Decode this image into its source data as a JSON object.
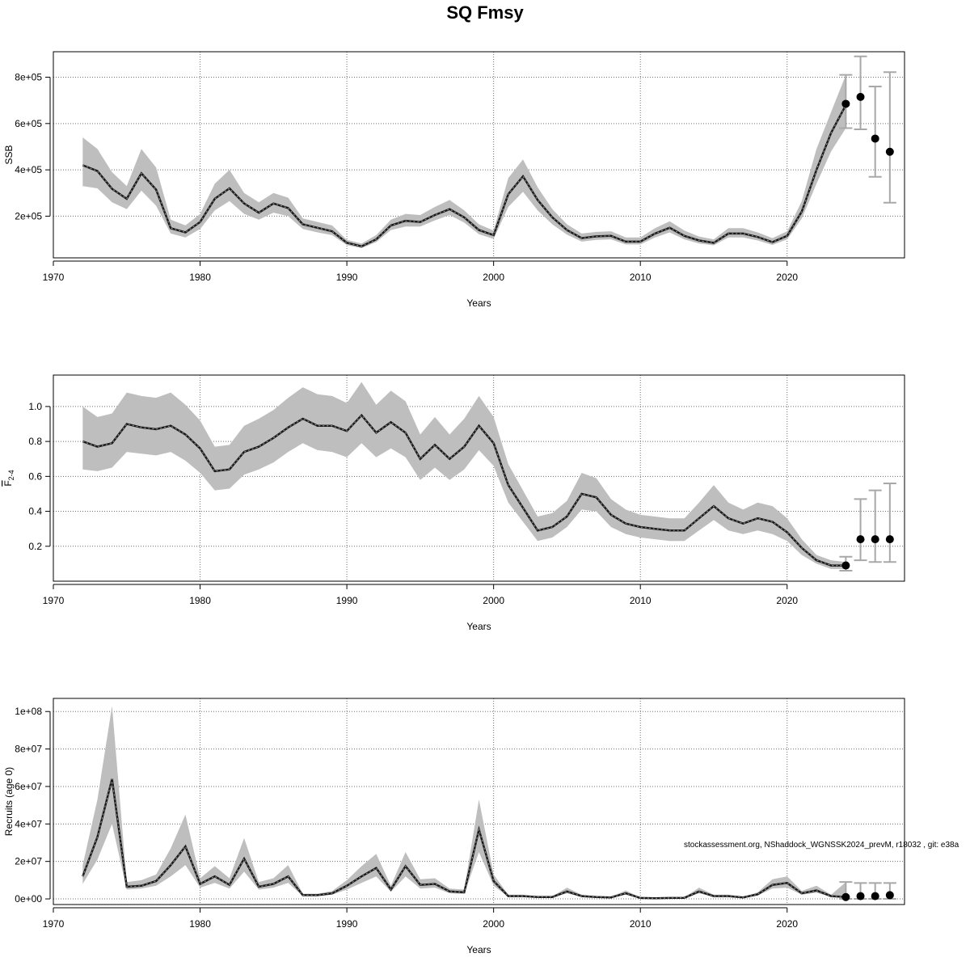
{
  "title": "SQ Fmsy",
  "watermark": "stockassessment.org, NShaddock_WGNSSK2024_prevM, r18032 , git: e38a",
  "colors": {
    "band": "#bebebe",
    "line": "#1a1a1a",
    "point": "#000000",
    "errorbar": "#a8a8a8",
    "grid": "#6e6e6e",
    "axis": "#000000"
  },
  "chart_data": [
    {
      "type": "line",
      "xlabel": "Years",
      "ylabel": "SSB",
      "xlim": [
        1970,
        2028
      ],
      "ylim": [
        20000,
        910000
      ],
      "xticks": [
        1970,
        1980,
        1990,
        2000,
        2010,
        2020
      ],
      "yticks": [
        200000,
        400000,
        600000,
        800000
      ],
      "ytick_labels": [
        "2e+05",
        "4e+05",
        "6e+05",
        "8e+05"
      ],
      "grid": true,
      "x": [
        1972,
        1973,
        1974,
        1975,
        1976,
        1977,
        1978,
        1979,
        1980,
        1981,
        1982,
        1983,
        1984,
        1985,
        1986,
        1987,
        1988,
        1989,
        1990,
        1991,
        1992,
        1993,
        1994,
        1995,
        1996,
        1997,
        1998,
        1999,
        2000,
        2001,
        2002,
        2003,
        2004,
        2005,
        2006,
        2007,
        2008,
        2009,
        2010,
        2011,
        2012,
        2013,
        2014,
        2015,
        2016,
        2017,
        2018,
        2019,
        2020,
        2021,
        2022,
        2023,
        2024
      ],
      "estimate": [
        420000,
        395000,
        318000,
        275000,
        385000,
        315000,
        148000,
        130000,
        175000,
        275000,
        320000,
        255000,
        215000,
        255000,
        235000,
        165000,
        150000,
        135000,
        85000,
        70000,
        100000,
        160000,
        180000,
        175000,
        205000,
        230000,
        195000,
        140000,
        118000,
        295000,
        372000,
        270000,
        195000,
        140000,
        105000,
        113000,
        115000,
        90000,
        90000,
        125000,
        150000,
        115000,
        95000,
        85000,
        125000,
        125000,
        110000,
        88000,
        115000,
        220000,
        400000,
        560000,
        680000
      ],
      "lower": [
        330000,
        320000,
        260000,
        230000,
        310000,
        245000,
        125000,
        108000,
        145000,
        225000,
        265000,
        210000,
        185000,
        215000,
        200000,
        145000,
        130000,
        118000,
        75000,
        62000,
        88000,
        140000,
        155000,
        155000,
        182000,
        205000,
        172000,
        122000,
        102000,
        240000,
        305000,
        225000,
        165000,
        120000,
        90000,
        98000,
        100000,
        78000,
        78000,
        108000,
        130000,
        100000,
        82000,
        74000,
        108000,
        108000,
        95000,
        76000,
        100000,
        190000,
        340000,
        480000,
        580000
      ],
      "upper": [
        540000,
        490000,
        390000,
        330000,
        490000,
        410000,
        185000,
        160000,
        210000,
        340000,
        400000,
        300000,
        260000,
        300000,
        280000,
        190000,
        175000,
        160000,
        98000,
        82000,
        118000,
        185000,
        210000,
        205000,
        240000,
        270000,
        225000,
        165000,
        138000,
        365000,
        445000,
        325000,
        230000,
        165000,
        125000,
        132000,
        135000,
        108000,
        108000,
        148000,
        178000,
        138000,
        112000,
        100000,
        148000,
        148000,
        130000,
        105000,
        135000,
        265000,
        490000,
        650000,
        810000
      ],
      "forecast_points": [
        {
          "year": 2024,
          "value": 685000,
          "low": 580000,
          "high": 810000
        },
        {
          "year": 2025,
          "value": 715000,
          "low": 575000,
          "high": 890000
        },
        {
          "year": 2026,
          "value": 535000,
          "low": 370000,
          "high": 760000
        },
        {
          "year": 2027,
          "value": 478000,
          "low": 258000,
          "high": 822000
        }
      ]
    },
    {
      "type": "line",
      "xlabel": "Years",
      "ylabel_main": "F",
      "ylabel_sub": "2-4",
      "xlim": [
        1970,
        2028
      ],
      "ylim": [
        0.0,
        1.18
      ],
      "xticks": [
        1970,
        1980,
        1990,
        2000,
        2010,
        2020
      ],
      "yticks": [
        0.2,
        0.4,
        0.6,
        0.8,
        1.0
      ],
      "ytick_labels": [
        "0.2",
        "0.4",
        "0.6",
        "0.8",
        "1.0"
      ],
      "grid": true,
      "x": [
        1972,
        1973,
        1974,
        1975,
        1976,
        1977,
        1978,
        1979,
        1980,
        1981,
        1982,
        1983,
        1984,
        1985,
        1986,
        1987,
        1988,
        1989,
        1990,
        1991,
        1992,
        1993,
        1994,
        1995,
        1996,
        1997,
        1998,
        1999,
        2000,
        2001,
        2002,
        2003,
        2004,
        2005,
        2006,
        2007,
        2008,
        2009,
        2010,
        2011,
        2012,
        2013,
        2014,
        2015,
        2016,
        2017,
        2018,
        2019,
        2020,
        2021,
        2022,
        2023,
        2024
      ],
      "estimate": [
        0.8,
        0.77,
        0.79,
        0.9,
        0.88,
        0.87,
        0.89,
        0.84,
        0.76,
        0.63,
        0.64,
        0.74,
        0.77,
        0.82,
        0.88,
        0.93,
        0.89,
        0.89,
        0.86,
        0.95,
        0.85,
        0.91,
        0.85,
        0.7,
        0.78,
        0.7,
        0.77,
        0.89,
        0.79,
        0.55,
        0.42,
        0.29,
        0.31,
        0.37,
        0.5,
        0.48,
        0.38,
        0.33,
        0.31,
        0.3,
        0.29,
        0.29,
        0.36,
        0.43,
        0.36,
        0.33,
        0.36,
        0.34,
        0.28,
        0.19,
        0.12,
        0.09,
        0.09
      ],
      "lower": [
        0.64,
        0.63,
        0.65,
        0.74,
        0.73,
        0.72,
        0.74,
        0.69,
        0.62,
        0.52,
        0.53,
        0.61,
        0.64,
        0.68,
        0.74,
        0.79,
        0.75,
        0.74,
        0.71,
        0.79,
        0.71,
        0.76,
        0.71,
        0.58,
        0.65,
        0.58,
        0.64,
        0.75,
        0.66,
        0.45,
        0.34,
        0.23,
        0.25,
        0.31,
        0.41,
        0.4,
        0.31,
        0.27,
        0.25,
        0.24,
        0.23,
        0.23,
        0.29,
        0.35,
        0.29,
        0.27,
        0.29,
        0.27,
        0.23,
        0.15,
        0.1,
        0.07,
        0.07
      ],
      "upper": [
        1.0,
        0.94,
        0.96,
        1.08,
        1.06,
        1.05,
        1.08,
        1.01,
        0.92,
        0.77,
        0.78,
        0.89,
        0.93,
        0.98,
        1.05,
        1.11,
        1.07,
        1.06,
        1.02,
        1.14,
        1.01,
        1.09,
        1.03,
        0.84,
        0.94,
        0.84,
        0.93,
        1.06,
        0.94,
        0.67,
        0.52,
        0.37,
        0.39,
        0.46,
        0.62,
        0.59,
        0.47,
        0.41,
        0.38,
        0.37,
        0.36,
        0.36,
        0.45,
        0.55,
        0.45,
        0.41,
        0.45,
        0.43,
        0.36,
        0.24,
        0.15,
        0.12,
        0.11
      ],
      "forecast_points": [
        {
          "year": 2024,
          "value": 0.09,
          "low": 0.06,
          "high": 0.14
        },
        {
          "year": 2025,
          "value": 0.24,
          "low": 0.12,
          "high": 0.47
        },
        {
          "year": 2026,
          "value": 0.24,
          "low": 0.11,
          "high": 0.52
        },
        {
          "year": 2027,
          "value": 0.24,
          "low": 0.11,
          "high": 0.56
        }
      ]
    },
    {
      "type": "line",
      "xlabel": "Years",
      "ylabel": "Recruits (age 0)",
      "xlim": [
        1970,
        2028
      ],
      "ylim": [
        -3000000,
        107000000
      ],
      "xticks": [
        1970,
        1980,
        1990,
        2000,
        2010,
        2020
      ],
      "yticks": [
        0,
        20000000,
        40000000,
        60000000,
        80000000,
        100000000
      ],
      "ytick_labels": [
        "0e+00",
        "2e+07",
        "4e+07",
        "6e+07",
        "8e+07",
        "1e+08"
      ],
      "grid": true,
      "x": [
        1972,
        1973,
        1974,
        1975,
        1976,
        1977,
        1978,
        1979,
        1980,
        1981,
        1982,
        1983,
        1984,
        1985,
        1986,
        1987,
        1988,
        1989,
        1990,
        1991,
        1992,
        1993,
        1994,
        1995,
        1996,
        1997,
        1998,
        1999,
        2000,
        2001,
        2002,
        2003,
        2004,
        2005,
        2006,
        2007,
        2008,
        2009,
        2010,
        2011,
        2012,
        2013,
        2014,
        2015,
        2016,
        2017,
        2018,
        2019,
        2020,
        2021,
        2022,
        2023,
        2024
      ],
      "estimate": [
        12000000,
        33000000,
        64000000,
        6500000,
        7000000,
        9500000,
        18000000,
        28000000,
        8000000,
        12000000,
        7500000,
        21500000,
        6500000,
        8000000,
        12000000,
        2000000,
        2000000,
        3000000,
        7000000,
        12000000,
        16500000,
        5000000,
        17500000,
        7500000,
        8000000,
        4000000,
        3500000,
        37000000,
        9500000,
        1500000,
        1500000,
        1000000,
        1000000,
        4000000,
        1500000,
        1000000,
        800000,
        3000000,
        500000,
        300000,
        500000,
        600000,
        4000000,
        1500000,
        1500000,
        800000,
        2500000,
        7500000,
        8500000,
        3000000,
        4500000,
        1500000,
        1000000
      ],
      "lower": [
        8000000,
        21000000,
        40000000,
        5000000,
        5500000,
        7000000,
        12000000,
        18000000,
        6000000,
        8500000,
        5500000,
        14500000,
        5000000,
        6000000,
        8500000,
        1500000,
        1500000,
        2200000,
        5000000,
        8500000,
        12000000,
        3800000,
        12000000,
        5500000,
        6000000,
        3000000,
        2700000,
        25000000,
        7000000,
        1100000,
        1100000,
        750000,
        750000,
        3000000,
        1100000,
        750000,
        600000,
        2200000,
        350000,
        200000,
        350000,
        450000,
        3000000,
        1100000,
        1100000,
        600000,
        1800000,
        5500000,
        6000000,
        2200000,
        3300000,
        1100000,
        700000
      ],
      "upper": [
        18000000,
        53000000,
        103000000,
        9000000,
        10000000,
        13000000,
        27000000,
        45000000,
        11000000,
        17500000,
        11000000,
        32500000,
        9000000,
        11000000,
        18000000,
        2800000,
        2800000,
        4200000,
        10000000,
        17500000,
        24000000,
        7000000,
        25000000,
        10500000,
        11000000,
        5500000,
        5000000,
        53000000,
        13000000,
        2200000,
        2200000,
        1400000,
        1400000,
        6000000,
        2200000,
        1400000,
        1100000,
        4500000,
        700000,
        450000,
        700000,
        900000,
        6000000,
        2200000,
        2200000,
        1100000,
        3500000,
        10500000,
        12000000,
        4300000,
        7000000,
        2200000,
        9000000
      ],
      "forecast_points": [
        {
          "year": 2024,
          "value": 1000000,
          "low": 0,
          "high": 9000000
        },
        {
          "year": 2025,
          "value": 1500000,
          "low": 0,
          "high": 8500000
        },
        {
          "year": 2026,
          "value": 1500000,
          "low": 0,
          "high": 8500000
        },
        {
          "year": 2027,
          "value": 2000000,
          "low": 0,
          "high": 8500000
        }
      ]
    }
  ]
}
